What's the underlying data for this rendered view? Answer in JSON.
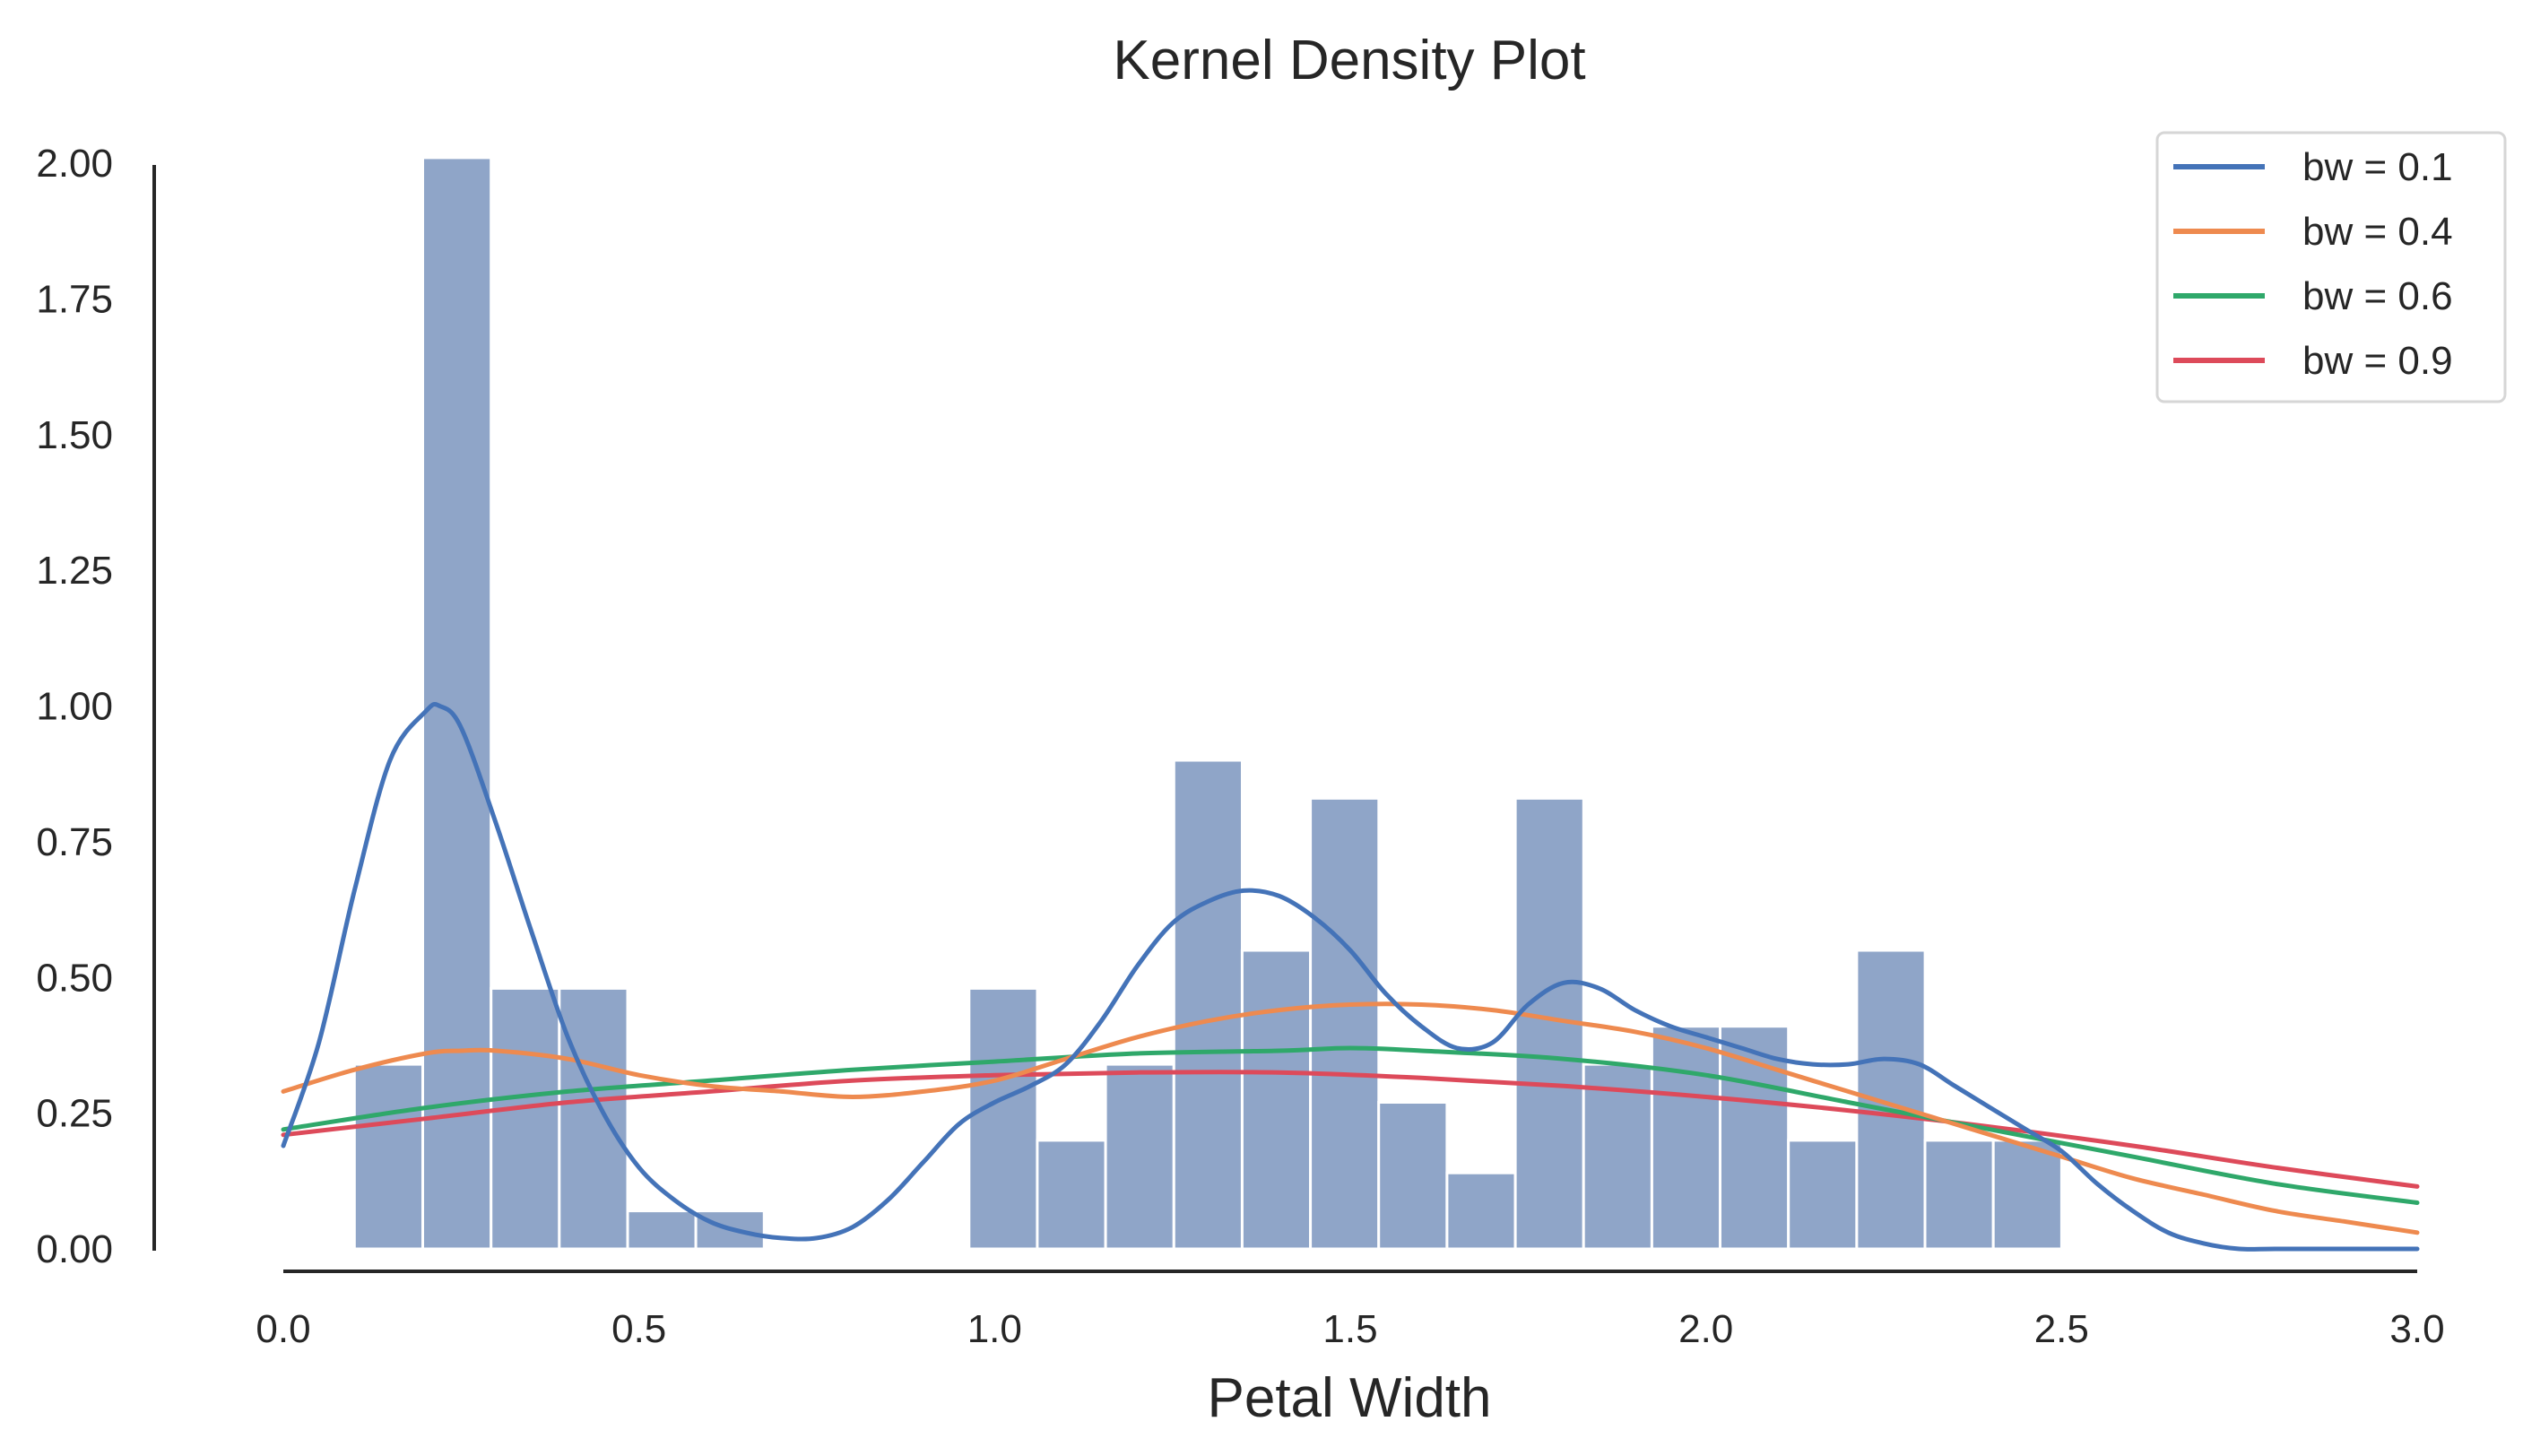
{
  "chart_data": {
    "type": "histogram_kde",
    "title": "Kernel Density Plot",
    "xlabel": "Petal Width",
    "ylabel": "",
    "xlim": [
      0.0,
      3.0
    ],
    "ylim": [
      0.0,
      2.0
    ],
    "grid": false,
    "legend_position": "top-right",
    "x_ticks": [
      0.0,
      0.5,
      1.0,
      1.5,
      2.0,
      2.5,
      3.0
    ],
    "x_tick_labels": [
      "0.0",
      "0.5",
      "1.0",
      "1.5",
      "2.0",
      "2.5",
      "3.0"
    ],
    "y_ticks": [
      0.0,
      0.25,
      0.5,
      0.75,
      1.0,
      1.25,
      1.5,
      1.75,
      2.0
    ],
    "y_tick_labels": [
      "0.00",
      "0.25",
      "0.50",
      "0.75",
      "1.00",
      "1.25",
      "1.50",
      "1.75",
      "2.00"
    ],
    "histogram": {
      "color": "#8fa5c8",
      "edge_color": "#ffffff",
      "bins": [
        {
          "x0": 0.1,
          "x1": 0.196,
          "value": 0.34
        },
        {
          "x0": 0.196,
          "x1": 0.292,
          "value": 2.01
        },
        {
          "x0": 0.292,
          "x1": 0.388,
          "value": 0.48
        },
        {
          "x0": 0.388,
          "x1": 0.484,
          "value": 0.48
        },
        {
          "x0": 0.484,
          "x1": 0.58,
          "value": 0.07
        },
        {
          "x0": 0.58,
          "x1": 0.676,
          "value": 0.07
        },
        {
          "x0": 0.676,
          "x1": 0.772,
          "value": 0.0
        },
        {
          "x0": 0.772,
          "x1": 0.868,
          "value": 0.0
        },
        {
          "x0": 0.868,
          "x1": 0.964,
          "value": 0.0
        },
        {
          "x0": 0.964,
          "x1": 1.06,
          "value": 0.48
        },
        {
          "x0": 1.06,
          "x1": 1.156,
          "value": 0.2
        },
        {
          "x0": 1.156,
          "x1": 1.252,
          "value": 0.34
        },
        {
          "x0": 1.252,
          "x1": 1.348,
          "value": 0.9
        },
        {
          "x0": 1.348,
          "x1": 1.444,
          "value": 0.55
        },
        {
          "x0": 1.444,
          "x1": 1.54,
          "value": 0.83
        },
        {
          "x0": 1.54,
          "x1": 1.636,
          "value": 0.27
        },
        {
          "x0": 1.636,
          "x1": 1.732,
          "value": 0.14
        },
        {
          "x0": 1.732,
          "x1": 1.828,
          "value": 0.83
        },
        {
          "x0": 1.828,
          "x1": 1.924,
          "value": 0.34
        },
        {
          "x0": 1.924,
          "x1": 2.02,
          "value": 0.41
        },
        {
          "x0": 2.02,
          "x1": 2.116,
          "value": 0.41
        },
        {
          "x0": 2.116,
          "x1": 2.212,
          "value": 0.2
        },
        {
          "x0": 2.212,
          "x1": 2.308,
          "value": 0.55
        },
        {
          "x0": 2.308,
          "x1": 2.404,
          "value": 0.2
        },
        {
          "x0": 2.404,
          "x1": 2.5,
          "value": 0.2
        }
      ]
    },
    "series": [
      {
        "name": "bw = 0.1",
        "color": "#4473b8",
        "x": [
          0.0,
          0.05,
          0.1,
          0.15,
          0.2,
          0.22,
          0.25,
          0.3,
          0.35,
          0.4,
          0.45,
          0.5,
          0.55,
          0.6,
          0.65,
          0.7,
          0.75,
          0.8,
          0.85,
          0.9,
          0.95,
          1.0,
          1.05,
          1.1,
          1.15,
          1.2,
          1.25,
          1.3,
          1.35,
          1.4,
          1.45,
          1.5,
          1.55,
          1.6,
          1.65,
          1.7,
          1.75,
          1.8,
          1.85,
          1.9,
          1.95,
          2.0,
          2.05,
          2.1,
          2.15,
          2.2,
          2.25,
          2.3,
          2.35,
          2.4,
          2.45,
          2.5,
          2.55,
          2.6,
          2.65,
          2.7,
          2.75,
          2.8,
          2.9,
          3.0
        ],
        "y": [
          0.19,
          0.38,
          0.66,
          0.9,
          0.99,
          1.0,
          0.96,
          0.78,
          0.58,
          0.39,
          0.25,
          0.15,
          0.09,
          0.05,
          0.03,
          0.02,
          0.02,
          0.04,
          0.09,
          0.16,
          0.23,
          0.27,
          0.3,
          0.34,
          0.42,
          0.52,
          0.6,
          0.64,
          0.66,
          0.65,
          0.61,
          0.55,
          0.47,
          0.41,
          0.37,
          0.38,
          0.45,
          0.49,
          0.48,
          0.44,
          0.41,
          0.39,
          0.37,
          0.35,
          0.34,
          0.34,
          0.35,
          0.34,
          0.3,
          0.26,
          0.22,
          0.18,
          0.12,
          0.07,
          0.03,
          0.01,
          0.0,
          0.0,
          0.0,
          0.0
        ]
      },
      {
        "name": "bw = 0.4",
        "color": "#ee8a4f",
        "x": [
          0.0,
          0.1,
          0.2,
          0.25,
          0.3,
          0.4,
          0.5,
          0.6,
          0.7,
          0.8,
          0.9,
          1.0,
          1.1,
          1.2,
          1.3,
          1.4,
          1.5,
          1.6,
          1.7,
          1.8,
          1.9,
          2.0,
          2.1,
          2.2,
          2.3,
          2.4,
          2.5,
          2.6,
          2.7,
          2.8,
          2.9,
          3.0
        ],
        "y": [
          0.29,
          0.33,
          0.36,
          0.365,
          0.365,
          0.35,
          0.32,
          0.3,
          0.29,
          0.28,
          0.29,
          0.31,
          0.35,
          0.39,
          0.42,
          0.44,
          0.45,
          0.45,
          0.44,
          0.42,
          0.4,
          0.37,
          0.33,
          0.29,
          0.25,
          0.21,
          0.17,
          0.13,
          0.1,
          0.07,
          0.05,
          0.03
        ]
      },
      {
        "name": "bw = 0.6",
        "color": "#2fa86a",
        "x": [
          0.0,
          0.2,
          0.4,
          0.6,
          0.8,
          1.0,
          1.2,
          1.4,
          1.5,
          1.6,
          1.8,
          2.0,
          2.2,
          2.4,
          2.6,
          2.8,
          3.0
        ],
        "y": [
          0.22,
          0.26,
          0.29,
          0.31,
          0.33,
          0.345,
          0.36,
          0.365,
          0.37,
          0.365,
          0.35,
          0.32,
          0.27,
          0.22,
          0.17,
          0.12,
          0.085
        ]
      },
      {
        "name": "bw = 0.9",
        "color": "#dd4a5a",
        "x": [
          0.0,
          0.2,
          0.4,
          0.6,
          0.8,
          1.0,
          1.2,
          1.4,
          1.6,
          1.8,
          2.0,
          2.2,
          2.4,
          2.6,
          2.8,
          3.0
        ],
        "y": [
          0.21,
          0.24,
          0.27,
          0.29,
          0.31,
          0.32,
          0.325,
          0.325,
          0.315,
          0.3,
          0.28,
          0.255,
          0.225,
          0.19,
          0.15,
          0.115
        ]
      }
    ]
  }
}
